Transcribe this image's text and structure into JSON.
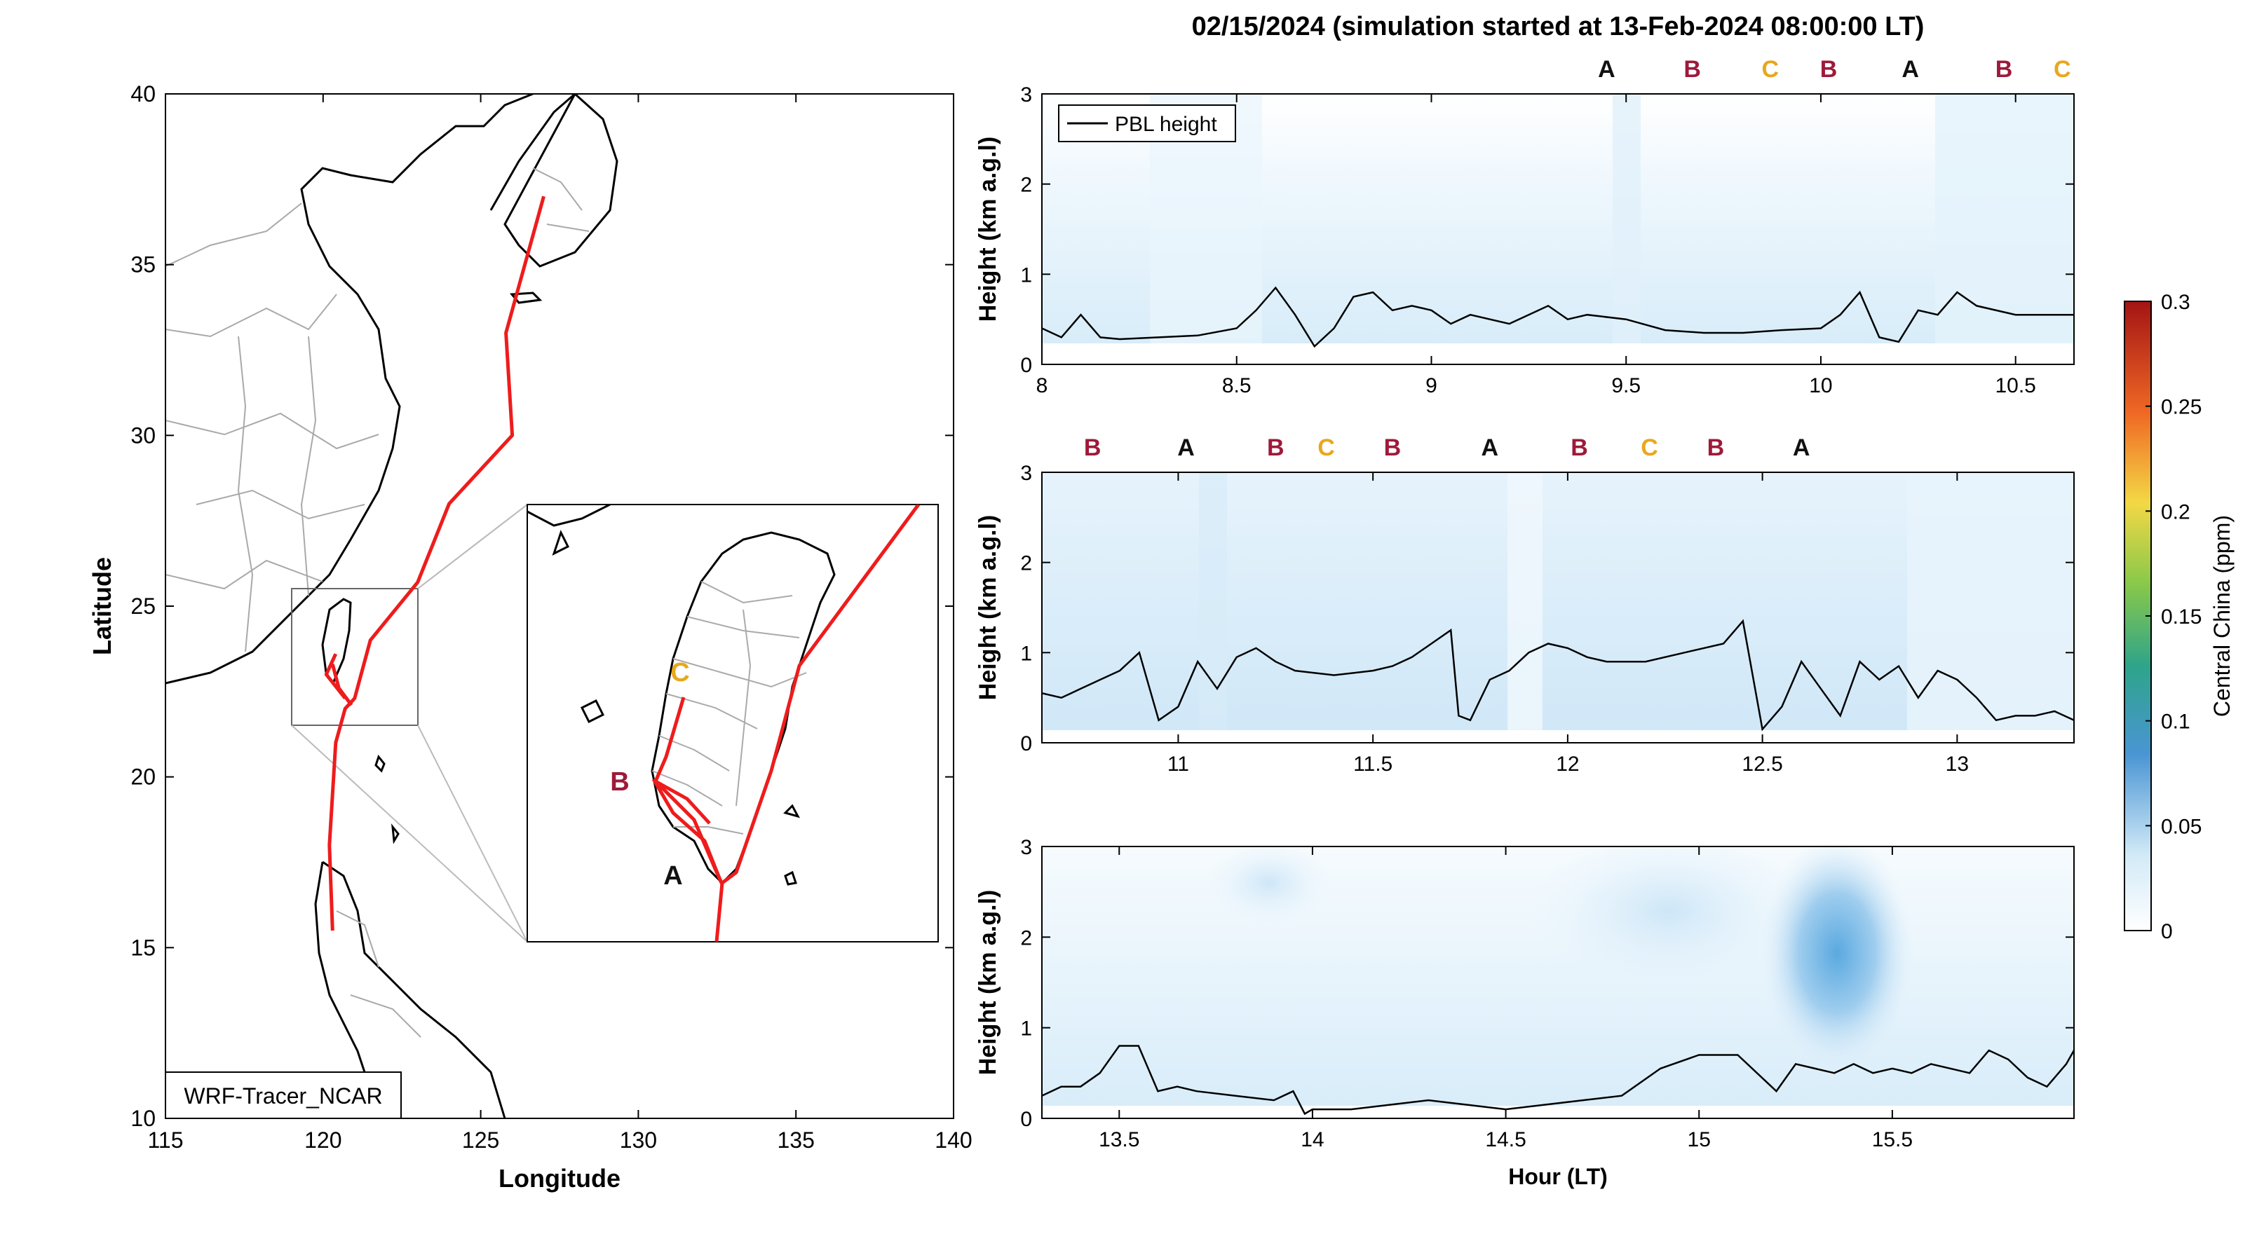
{
  "title": "02/15/2024 (simulation started at 13-Feb-2024 08:00:00 LT)",
  "colors": {
    "track": "#ee1c1c",
    "A": "#111111",
    "B": "#9e1a3a",
    "C": "#e8a81c",
    "pbl": "#000000"
  },
  "chart_data": [
    {
      "type": "map",
      "xlabel": "Longitude",
      "ylabel": "Latitude",
      "xlim": [
        115,
        140
      ],
      "ylim": [
        10,
        40
      ],
      "xticks": [
        "115",
        "120",
        "125",
        "130",
        "135",
        "140"
      ],
      "yticks": [
        "10",
        "15",
        "20",
        "25",
        "30",
        "35",
        "40"
      ],
      "model_label": "WRF-Tracer_NCAR",
      "inset_box": {
        "lon": [
          119,
          123
        ],
        "lat": [
          21.5,
          25.5
        ]
      },
      "series": [
        {
          "points": [
            [
              127,
              37
            ],
            [
              125.8,
              33
            ],
            [
              126,
              30
            ],
            [
              124,
              28
            ],
            [
              123,
              25.7
            ],
            [
              121.5,
              24
            ],
            [
              121,
              22.3
            ],
            [
              120.7,
              22
            ],
            [
              120.4,
              21
            ],
            [
              120.2,
              18
            ],
            [
              120.3,
              15.5
            ]
          ]
        },
        {
          "points": [
            [
              120.4,
              23.6
            ],
            [
              120.1,
              23
            ],
            [
              120.7,
              22.3
            ]
          ]
        },
        {
          "points": [
            [
              120.3,
              23.3
            ],
            [
              120.5,
              22.6
            ],
            [
              120.9,
              22.1
            ]
          ]
        }
      ],
      "inset_labels": [
        "C",
        "B",
        "A"
      ]
    },
    {
      "type": "heatmap",
      "ylabel": "Height (km a.g.l)",
      "xlim": [
        8,
        10.65
      ],
      "ylim": [
        0,
        3
      ],
      "xticks": [
        "8",
        "8.5",
        "9",
        "9.5",
        "10",
        "10.5"
      ],
      "yticks": [
        "0",
        "1",
        "2",
        "3"
      ],
      "legend": "PBL height",
      "top_labels": [
        {
          "x": 9.45,
          "label": "A"
        },
        {
          "x": 9.67,
          "label": "B"
        },
        {
          "x": 9.87,
          "label": "C"
        },
        {
          "x": 10.02,
          "label": "B"
        },
        {
          "x": 10.23,
          "label": "A"
        },
        {
          "x": 10.47,
          "label": "B"
        },
        {
          "x": 10.62,
          "label": "C"
        }
      ],
      "pbl": {
        "x": [
          8,
          8.05,
          8.1,
          8.15,
          8.2,
          8.3,
          8.4,
          8.5,
          8.55,
          8.6,
          8.65,
          8.7,
          8.75,
          8.8,
          8.85,
          8.9,
          8.95,
          9,
          9.05,
          9.1,
          9.2,
          9.3,
          9.35,
          9.4,
          9.5,
          9.6,
          9.7,
          9.8,
          9.9,
          10,
          10.05,
          10.1,
          10.15,
          10.2,
          10.25,
          10.3,
          10.35,
          10.4,
          10.5,
          10.6,
          10.65
        ],
        "y": [
          0.4,
          0.3,
          0.55,
          0.3,
          0.28,
          0.3,
          0.32,
          0.4,
          0.6,
          0.85,
          0.55,
          0.2,
          0.4,
          0.75,
          0.8,
          0.6,
          0.65,
          0.6,
          0.45,
          0.55,
          0.45,
          0.65,
          0.5,
          0.55,
          0.5,
          0.38,
          0.35,
          0.35,
          0.38,
          0.4,
          0.55,
          0.8,
          0.3,
          0.25,
          0.6,
          0.55,
          0.8,
          0.65,
          0.55,
          0.55,
          0.55
        ]
      },
      "concentration": {
        "min": 0.01,
        "max": 0.04
      }
    },
    {
      "type": "heatmap",
      "ylabel": "Height (km a.g.l)",
      "xlim": [
        10.65,
        13.3
      ],
      "ylim": [
        0,
        3
      ],
      "xticks": [
        "11",
        "11.5",
        "12",
        "12.5",
        "13"
      ],
      "yticks": [
        "0",
        "1",
        "2",
        "3"
      ],
      "top_labels": [
        {
          "x": 10.78,
          "label": "B"
        },
        {
          "x": 11.02,
          "label": "A"
        },
        {
          "x": 11.25,
          "label": "B"
        },
        {
          "x": 11.38,
          "label": "C"
        },
        {
          "x": 11.55,
          "label": "B"
        },
        {
          "x": 11.8,
          "label": "A"
        },
        {
          "x": 12.03,
          "label": "B"
        },
        {
          "x": 12.21,
          "label": "C"
        },
        {
          "x": 12.38,
          "label": "B"
        },
        {
          "x": 12.6,
          "label": "A"
        }
      ],
      "pbl": {
        "x": [
          10.65,
          10.7,
          10.75,
          10.8,
          10.85,
          10.9,
          10.95,
          11,
          11.05,
          11.1,
          11.15,
          11.2,
          11.25,
          11.3,
          11.4,
          11.5,
          11.55,
          11.6,
          11.65,
          11.7,
          11.72,
          11.75,
          11.8,
          11.85,
          11.9,
          11.95,
          12,
          12.05,
          12.1,
          12.2,
          12.3,
          12.4,
          12.45,
          12.5,
          12.55,
          12.6,
          12.65,
          12.7,
          12.75,
          12.8,
          12.85,
          12.9,
          12.95,
          13,
          13.05,
          13.1,
          13.15,
          13.2,
          13.25,
          13.3
        ],
        "y": [
          0.55,
          0.5,
          0.6,
          0.7,
          0.8,
          1.0,
          0.25,
          0.4,
          0.9,
          0.6,
          0.95,
          1.05,
          0.9,
          0.8,
          0.75,
          0.8,
          0.85,
          0.95,
          1.1,
          1.25,
          0.3,
          0.25,
          0.7,
          0.8,
          1.0,
          1.1,
          1.05,
          0.95,
          0.9,
          0.9,
          1.0,
          1.1,
          1.35,
          0.15,
          0.4,
          0.9,
          0.6,
          0.3,
          0.9,
          0.7,
          0.85,
          0.5,
          0.8,
          0.7,
          0.5,
          0.25,
          0.3,
          0.3,
          0.35,
          0.25
        ]
      },
      "concentration": {
        "min": 0.02,
        "max": 0.05
      }
    },
    {
      "type": "heatmap",
      "xlabel": "Hour (LT)",
      "ylabel": "Height (km a.g.l)",
      "xlim": [
        13.3,
        15.97
      ],
      "ylim": [
        0,
        3
      ],
      "xticks": [
        "13.5",
        "14",
        "14.5",
        "15",
        "15.5"
      ],
      "yticks": [
        "0",
        "1",
        "2",
        "3"
      ],
      "pbl": {
        "x": [
          13.3,
          13.35,
          13.4,
          13.45,
          13.5,
          13.55,
          13.6,
          13.65,
          13.7,
          13.8,
          13.9,
          13.95,
          13.98,
          14,
          14.1,
          14.2,
          14.3,
          14.4,
          14.5,
          14.6,
          14.7,
          14.8,
          14.9,
          15,
          15.1,
          15.15,
          15.2,
          15.25,
          15.3,
          15.35,
          15.4,
          15.45,
          15.5,
          15.55,
          15.6,
          15.7,
          15.75,
          15.8,
          15.85,
          15.9,
          15.95,
          15.97
        ],
        "y": [
          0.25,
          0.35,
          0.35,
          0.5,
          0.8,
          0.8,
          0.3,
          0.35,
          0.3,
          0.25,
          0.2,
          0.3,
          0.05,
          0.1,
          0.1,
          0.15,
          0.2,
          0.15,
          0.1,
          0.15,
          0.2,
          0.25,
          0.55,
          0.7,
          0.7,
          0.5,
          0.3,
          0.6,
          0.55,
          0.5,
          0.6,
          0.5,
          0.55,
          0.5,
          0.6,
          0.5,
          0.75,
          0.65,
          0.45,
          0.35,
          0.6,
          0.75
        ]
      },
      "concentration": {
        "min": 0.02,
        "max": 0.08
      },
      "plume": {
        "x": [
          15.2,
          15.6
        ],
        "y": [
          1.0,
          3.0
        ],
        "peak": 0.08
      }
    },
    {
      "type": "colorbar",
      "label": "Central China (ppm)",
      "range": [
        0,
        0.3
      ],
      "ticks": [
        "0",
        "0.05",
        "0.1",
        "0.15",
        "0.2",
        "0.25",
        "0.3"
      ]
    }
  ]
}
